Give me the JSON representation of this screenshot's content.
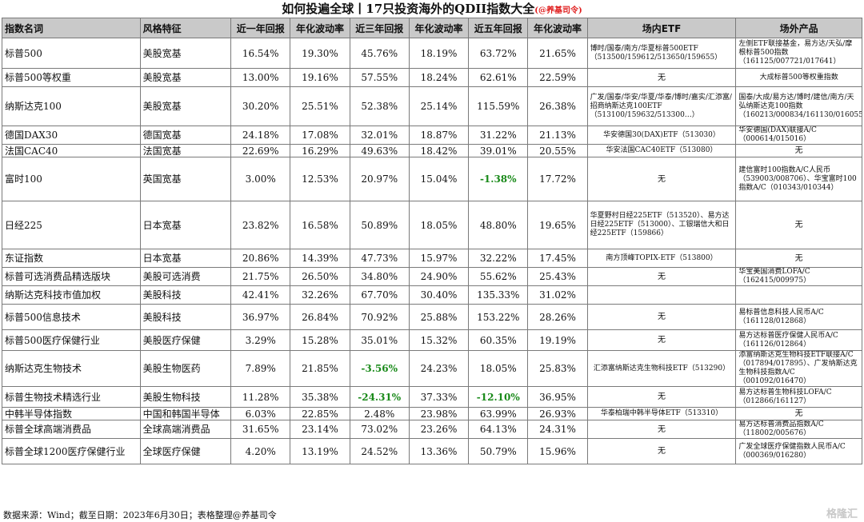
{
  "title": "如何投遍全球丨17只投资海外的QDII指数大全",
  "title_credit": "(@养基司令)",
  "headers": [
    "指数名词",
    "风格特征",
    "近一年回报",
    "年化波动率",
    "近三年回报",
    "年化波动率",
    "近五年回报",
    "年化波动率",
    "场内ETF",
    "场外产品"
  ],
  "rows": [
    {
      "name": "标普500",
      "style": "美股宽基",
      "r1": "16.54%",
      "v1": "19.30%",
      "r3": "45.76%",
      "v3": "18.19%",
      "r5": "63.72%",
      "v5": "21.65%",
      "etf": "博时/国泰/南方/华夏标普500ETF（513500/159612/513650/159655）",
      "otc": "左侧ETF联接基金，易方达/天弘/摩根标普500指数（161125/007721/017641）"
    },
    {
      "name": "标普500等权重",
      "style": "美股宽基",
      "r1": "13.00%",
      "v1": "19.16%",
      "r3": "57.55%",
      "v3": "18.24%",
      "r5": "62.61%",
      "v5": "22.59%",
      "etf": "无",
      "otc": "大成标普500等权重指数"
    },
    {
      "name": "纳斯达克100",
      "style": "美股宽基",
      "r1": "30.20%",
      "v1": "25.51%",
      "r3": "52.38%",
      "v3": "25.14%",
      "r5": "115.59%",
      "v5": "26.38%",
      "etf": "广发/国泰/华安/华夏/华泰/博时/嘉实/汇添富/招商纳斯达克100ETF（513100/159632/513300…）",
      "otc": "国泰/大成/易方达/博时/建信/南方/天弘纳斯达克100指数（160213/000834/161130/016055…）"
    },
    {
      "name": "德国DAX30",
      "style": "德国宽基",
      "r1": "24.18%",
      "v1": "17.08%",
      "r3": "32.01%",
      "v3": "18.87%",
      "r5": "31.22%",
      "v5": "21.13%",
      "etf": "华安德国30(DAX)ETF（513030）",
      "otc": "华安德国(DAX)联接A/C（000614/015016）"
    },
    {
      "name": "法国CAC40",
      "style": "法国宽基",
      "r1": "22.69%",
      "v1": "16.29%",
      "r3": "49.63%",
      "v3": "18.42%",
      "r5": "39.01%",
      "v5": "20.55%",
      "etf": "华安法国CAC40ETF（513080）",
      "otc": "无"
    },
    {
      "name": "富时100",
      "style": "英国宽基",
      "r1": "3.00%",
      "v1": "12.53%",
      "r3": "20.97%",
      "v3": "15.04%",
      "r5": "-1.38%",
      "v5": "17.72%",
      "etf": "无",
      "otc": "建信富时100指数A/C人民币（539003/008706）、华宝富时100指数A/C（010343/010344）"
    },
    {
      "name": "日经225",
      "style": "日本宽基",
      "r1": "23.82%",
      "v1": "16.58%",
      "r3": "50.89%",
      "v3": "18.05%",
      "r5": "48.80%",
      "v5": "19.65%",
      "etf": "华夏野村日经225ETF（513520）、易方达日经225ETF（513000）、工银瑞信大和日经225ETF（159866）",
      "otc": "无"
    },
    {
      "name": "东证指数",
      "style": "日本宽基",
      "r1": "20.86%",
      "v1": "14.39%",
      "r3": "47.73%",
      "v3": "15.97%",
      "r5": "32.22%",
      "v5": "17.45%",
      "etf": "南方顶峰TOPIX-ETF（513800）",
      "otc": "无"
    },
    {
      "name": "标普可选消费品精选版块",
      "style": "美股可选消费",
      "r1": "21.75%",
      "v1": "26.50%",
      "r3": "34.80%",
      "v3": "24.90%",
      "r5": "55.62%",
      "v5": "25.43%",
      "etf": "无",
      "otc": "华宝美国消费LOFA/C（162415/009975）"
    },
    {
      "name": "纳斯达克科技市值加权",
      "style": "美股科技",
      "r1": "42.41%",
      "v1": "32.26%",
      "r3": "67.70%",
      "v3": "30.40%",
      "r5": "135.33%",
      "v5": "31.02%",
      "etf": "",
      "otc": ""
    },
    {
      "name": "标普500信息技术",
      "style": "美股科技",
      "r1": "36.97%",
      "v1": "26.84%",
      "r3": "70.92%",
      "v3": "25.88%",
      "r5": "153.22%",
      "v5": "28.26%",
      "etf": "无",
      "otc": "易标普信息科技人民币A/C（161128/012868）"
    },
    {
      "name": "标普500医疗保健行业",
      "style": "美股医疗保健",
      "r1": "3.29%",
      "v1": "15.28%",
      "r3": "35.01%",
      "v3": "15.32%",
      "r5": "60.35%",
      "v5": "19.19%",
      "etf": "无",
      "otc": "易方达标普医疗保健人民币A/C（161126/012864）"
    },
    {
      "name": "纳斯达克生物技术",
      "style": "美股生物医药",
      "r1": "7.89%",
      "v1": "21.85%",
      "r3": "-3.56%",
      "v3": "24.23%",
      "r5": "18.05%",
      "v5": "25.83%",
      "etf": "汇添富纳斯达克生物科技ETF（513290）",
      "otc": "添富纳斯达克生物科技ETF联接A/C（017894/017895）、广发纳斯达克生物科技指数A/C（001092/016470）"
    },
    {
      "name": "标普生物技术精选行业",
      "style": "美股生物科技",
      "r1": "11.28%",
      "v1": "35.38%",
      "r3": "-24.31%",
      "v3": "37.33%",
      "r5": "-12.10%",
      "v5": "36.95%",
      "etf": "无",
      "otc": "易方达标普生物科技LOFA/C（012866/161127）"
    },
    {
      "name": "中韩半导体指数",
      "style": "中国和韩国半导体",
      "r1": "6.03%",
      "v1": "22.85%",
      "r3": "2.48%",
      "v3": "23.98%",
      "r5": "63.99%",
      "v5": "26.93%",
      "etf": "华泰柏瑞中韩半导体ETF（513310）",
      "otc": "无"
    },
    {
      "name": "标普全球高端消费品",
      "style": "全球高端消费品",
      "r1": "31.65%",
      "v1": "23.14%",
      "r3": "73.02%",
      "v3": "23.26%",
      "r5": "64.13%",
      "v5": "24.31%",
      "etf": "无",
      "otc": "易方达标普消费品指数A/C（118002/005676）"
    },
    {
      "name": "标普全球1200医疗保健行业",
      "style": "全球医疗保健",
      "r1": "4.20%",
      "v1": "13.19%",
      "r3": "24.52%",
      "v3": "13.36%",
      "r5": "50.79%",
      "v5": "15.96%",
      "etf": "无",
      "otc": "广发全球医疗保健指数人民币A/C（000369/016280）"
    }
  ],
  "footer": "数据来源：Wind；截至日期：2023年6月30日；表格整理@养基司令",
  "watermark": "格隆汇",
  "colors": {
    "header_bg": "#c9c9c9",
    "negative": "#1a8a1a",
    "credit": "#e02020"
  }
}
